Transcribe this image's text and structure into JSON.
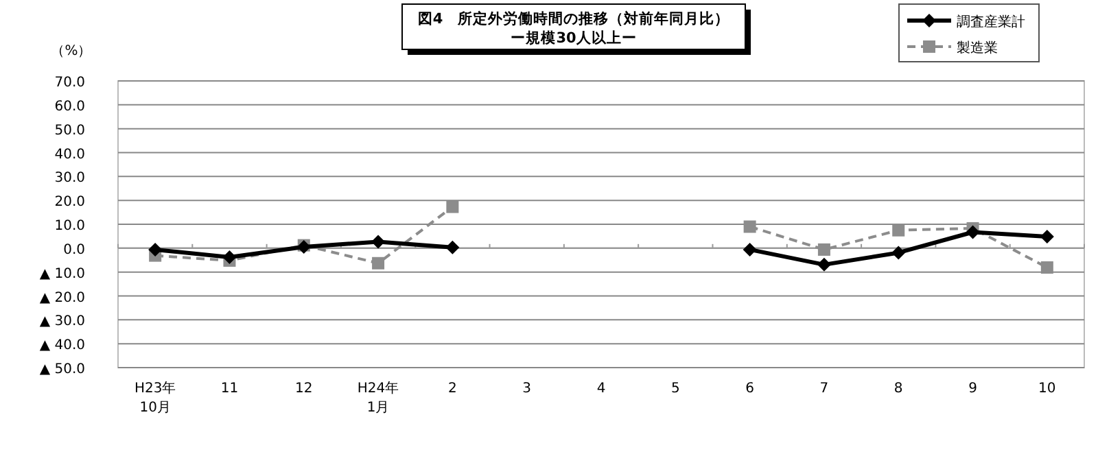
{
  "chart_data": {
    "type": "line",
    "title": "図4　所定外労働時間の推移（対前年同月比）",
    "subtitle": "ー規模30人以上ー",
    "ylabel": "（%）",
    "categories": [
      "H23年\n10月",
      "11",
      "12",
      "H24年\n1月",
      "2",
      "3",
      "4",
      "5",
      "6",
      "7",
      "8",
      "9",
      "10"
    ],
    "series": [
      {
        "name": "調査産業計",
        "color": "#000000",
        "marker": "diamond",
        "line_style": "solid",
        "values": [
          -0.6,
          -3.8,
          0.5,
          2.7,
          0.3,
          null,
          null,
          null,
          -0.6,
          -6.9,
          -1.9,
          6.7,
          4.8
        ]
      },
      {
        "name": "製造業",
        "color": "#8c8c8c",
        "marker": "square",
        "line_style": "dashed",
        "values": [
          -3.1,
          -5.2,
          1.2,
          -6.3,
          17.3,
          null,
          null,
          null,
          9.0,
          -0.6,
          7.5,
          8.3,
          -8.1
        ]
      }
    ],
    "ylim": [
      -50,
      70
    ],
    "yticks": [
      {
        "value": -50,
        "label": "▲ 50.0"
      },
      {
        "value": -40,
        "label": "▲ 40.0"
      },
      {
        "value": -30,
        "label": "▲ 30.0"
      },
      {
        "value": -20,
        "label": "▲ 20.0"
      },
      {
        "value": -10,
        "label": "▲ 10.0"
      },
      {
        "value": 0,
        "label": "0.0"
      },
      {
        "value": 10,
        "label": "10.0"
      },
      {
        "value": 20,
        "label": "20.0"
      },
      {
        "value": 30,
        "label": "30.0"
      },
      {
        "value": 40,
        "label": "40.0"
      },
      {
        "value": 50,
        "label": "50.0"
      },
      {
        "value": 60,
        "label": "60.0"
      },
      {
        "value": 70,
        "label": "70.0"
      }
    ],
    "grid": "y",
    "legend": "top right"
  }
}
